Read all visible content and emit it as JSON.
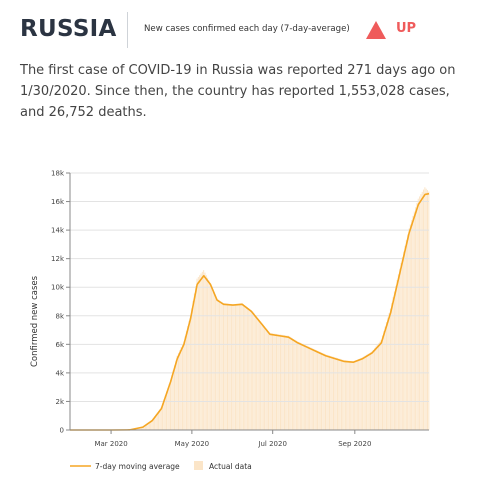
{
  "header": {
    "country": "RUSSIA",
    "subtitle": "New cases confirmed each day (7-day-average)",
    "trend_label": "UP",
    "trend_icon": "triangle-up-icon",
    "trend_color": "#ef5b5b"
  },
  "summary": "The first case of COVID-19 in Russia was reported 271 days ago on 1/30/2020. Since then, the country has reported 1,553,028 cases, and 26,752 deaths.",
  "colors": {
    "line": "#f5a623",
    "bars": "#fbe5c8",
    "grid": "#e3e3e3"
  },
  "chart_data": {
    "type": "area",
    "ylabel": "Confirmed new cases",
    "xlabel": "",
    "ylim": [
      0,
      18000
    ],
    "yticks": [
      0,
      2000,
      4000,
      6000,
      8000,
      10000,
      12000,
      14000,
      16000,
      18000
    ],
    "ytick_labels": [
      "0",
      "2k",
      "4k",
      "6k",
      "8k",
      "10k",
      "12k",
      "14k",
      "16k",
      "18k"
    ],
    "xlim": [
      "2020-01-30",
      "2020-10-27"
    ],
    "xticks": [
      "2020-03-01",
      "2020-05-01",
      "2020-07-01",
      "2020-09-01"
    ],
    "xtick_labels": [
      "Mar 2020",
      "May 2020",
      "Jul 2020",
      "Sep 2020"
    ],
    "grid": "horizontal",
    "legend_position": "bottom-left",
    "series": [
      {
        "name": "7-day moving average",
        "style": "line",
        "points": [
          [
            "2020-01-30",
            0
          ],
          [
            "2020-03-01",
            0
          ],
          [
            "2020-03-15",
            10
          ],
          [
            "2020-03-25",
            200
          ],
          [
            "2020-04-01",
            650
          ],
          [
            "2020-04-08",
            1500
          ],
          [
            "2020-04-15",
            3400
          ],
          [
            "2020-04-20",
            5000
          ],
          [
            "2020-04-25",
            6000
          ],
          [
            "2020-04-30",
            7800
          ],
          [
            "2020-05-05",
            10200
          ],
          [
            "2020-05-10",
            10800
          ],
          [
            "2020-05-15",
            10200
          ],
          [
            "2020-05-20",
            9100
          ],
          [
            "2020-05-25",
            8800
          ],
          [
            "2020-06-01",
            8750
          ],
          [
            "2020-06-08",
            8800
          ],
          [
            "2020-06-15",
            8300
          ],
          [
            "2020-06-22",
            7500
          ],
          [
            "2020-06-29",
            6700
          ],
          [
            "2020-07-06",
            6600
          ],
          [
            "2020-07-13",
            6500
          ],
          [
            "2020-07-20",
            6100
          ],
          [
            "2020-07-27",
            5800
          ],
          [
            "2020-08-03",
            5500
          ],
          [
            "2020-08-10",
            5200
          ],
          [
            "2020-08-17",
            5000
          ],
          [
            "2020-08-24",
            4800
          ],
          [
            "2020-08-31",
            4750
          ],
          [
            "2020-09-07",
            5000
          ],
          [
            "2020-09-14",
            5400
          ],
          [
            "2020-09-21",
            6100
          ],
          [
            "2020-09-28",
            8200
          ],
          [
            "2020-10-05",
            11000
          ],
          [
            "2020-10-12",
            13800
          ],
          [
            "2020-10-19",
            15800
          ],
          [
            "2020-10-24",
            16500
          ],
          [
            "2020-10-27",
            16550
          ]
        ]
      },
      {
        "name": "Actual data",
        "style": "bars",
        "points": [
          [
            "2020-01-30",
            0
          ],
          [
            "2020-03-01",
            0
          ],
          [
            "2020-03-15",
            10
          ],
          [
            "2020-03-25",
            250
          ],
          [
            "2020-04-01",
            700
          ],
          [
            "2020-04-08",
            1600
          ],
          [
            "2020-04-15",
            3500
          ],
          [
            "2020-04-20",
            5200
          ],
          [
            "2020-04-25",
            6200
          ],
          [
            "2020-04-30",
            8000
          ],
          [
            "2020-05-05",
            10600
          ],
          [
            "2020-05-10",
            11200
          ],
          [
            "2020-05-15",
            10300
          ],
          [
            "2020-05-20",
            9200
          ],
          [
            "2020-05-25",
            8900
          ],
          [
            "2020-06-01",
            8800
          ],
          [
            "2020-06-08",
            8900
          ],
          [
            "2020-06-15",
            8400
          ],
          [
            "2020-06-22",
            7600
          ],
          [
            "2020-06-29",
            6800
          ],
          [
            "2020-07-06",
            6700
          ],
          [
            "2020-07-13",
            6600
          ],
          [
            "2020-07-20",
            6200
          ],
          [
            "2020-07-27",
            5900
          ],
          [
            "2020-08-03",
            5600
          ],
          [
            "2020-08-10",
            5300
          ],
          [
            "2020-08-17",
            5100
          ],
          [
            "2020-08-24",
            4900
          ],
          [
            "2020-08-31",
            4800
          ],
          [
            "2020-09-07",
            5100
          ],
          [
            "2020-09-14",
            5500
          ],
          [
            "2020-09-21",
            6300
          ],
          [
            "2020-09-28",
            8500
          ],
          [
            "2020-10-05",
            11300
          ],
          [
            "2020-10-12",
            14100
          ],
          [
            "2020-10-19",
            16200
          ],
          [
            "2020-10-24",
            17000
          ],
          [
            "2020-10-27",
            16700
          ]
        ]
      }
    ]
  }
}
